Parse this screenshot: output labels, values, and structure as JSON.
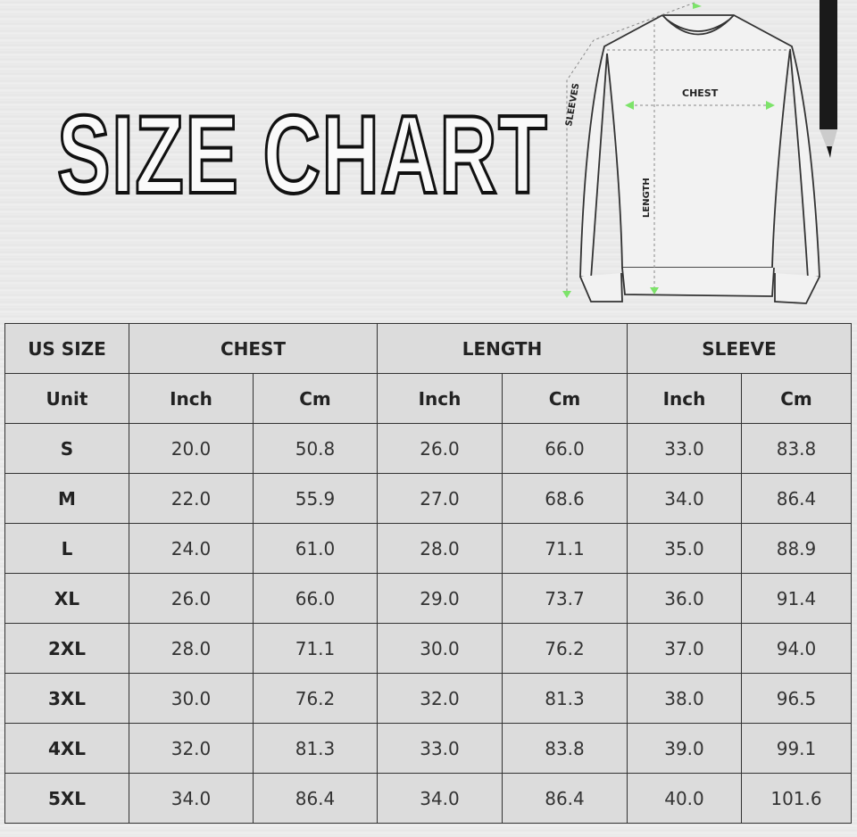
{
  "title": "SIZE CHART",
  "diagram": {
    "sleeves": "SLEEVES",
    "chest": "CHEST",
    "length": "LENGTH",
    "arrow_color": "#7de36a"
  },
  "table": {
    "groups": [
      "US SIZE",
      "CHEST",
      "LENGTH",
      "SLEEVE"
    ],
    "unit_label": "Unit",
    "units": [
      "Inch",
      "Cm",
      "Inch",
      "Cm",
      "Inch",
      "Cm"
    ],
    "rows": [
      [
        "S",
        "20.0",
        "50.8",
        "26.0",
        "66.0",
        "33.0",
        "83.8"
      ],
      [
        "M",
        "22.0",
        "55.9",
        "27.0",
        "68.6",
        "34.0",
        "86.4"
      ],
      [
        "L",
        "24.0",
        "61.0",
        "28.0",
        "71.1",
        "35.0",
        "88.9"
      ],
      [
        "XL",
        "26.0",
        "66.0",
        "29.0",
        "73.7",
        "36.0",
        "91.4"
      ],
      [
        "2XL",
        "28.0",
        "71.1",
        "30.0",
        "76.2",
        "37.0",
        "94.0"
      ],
      [
        "3XL",
        "30.0",
        "76.2",
        "32.0",
        "81.3",
        "38.0",
        "96.5"
      ],
      [
        "4XL",
        "32.0",
        "81.3",
        "33.0",
        "83.8",
        "39.0",
        "99.1"
      ],
      [
        "5XL",
        "34.0",
        "86.4",
        "34.0",
        "86.4",
        "40.0",
        "101.6"
      ]
    ]
  }
}
